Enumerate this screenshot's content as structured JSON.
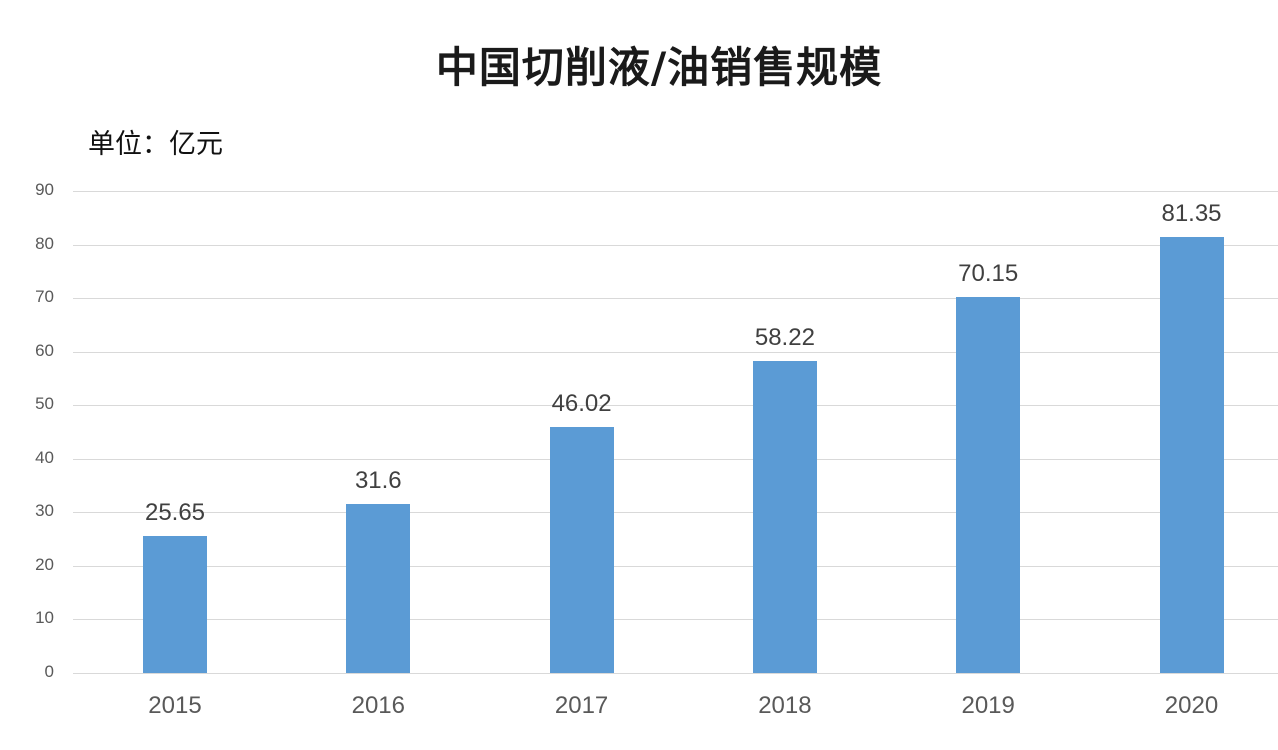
{
  "title": "中国切削液/油销售规模",
  "unit_label": "单位：亿元",
  "colors": {
    "bar": "#5b9bd5",
    "grid": "#d9d9d9",
    "axis_text": "#595959",
    "label_text": "#404040"
  },
  "chart_data": {
    "type": "bar",
    "title": "中国切削液/油销售规模",
    "subtitle": "单位：亿元",
    "xlabel": "",
    "ylabel": "",
    "categories": [
      "2015",
      "2016",
      "2017",
      "2018",
      "2019",
      "2020"
    ],
    "values": [
      25.65,
      31.6,
      46.02,
      58.22,
      70.15,
      81.35
    ],
    "data_labels": [
      "25.65",
      "31.6",
      "46.02",
      "58.22",
      "70.15",
      "81.35"
    ],
    "ylim": [
      0,
      90
    ],
    "yticks": [
      "0",
      "10",
      "20",
      "30",
      "40",
      "50",
      "60",
      "70",
      "80",
      "90"
    ],
    "grid": true,
    "legend": null
  }
}
